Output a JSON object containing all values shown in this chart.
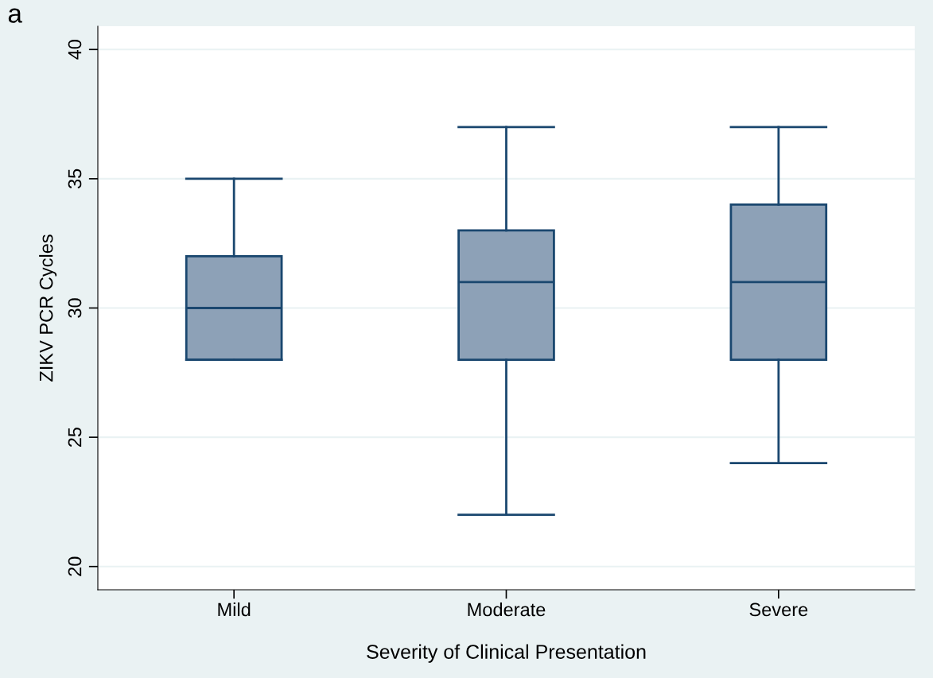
{
  "chart_data": {
    "type": "box",
    "xlabel": "Severity of Clinical Presentation",
    "ylabel": "ZIKV PCR Cycles",
    "annotations": [
      "a"
    ],
    "categories": [
      "Mild",
      "Moderate",
      "Severe"
    ],
    "boxes": [
      {
        "low": 28,
        "q1": 28,
        "median": 30,
        "q3": 32,
        "high": 35
      },
      {
        "low": 22,
        "q1": 28,
        "median": 31,
        "q3": 33,
        "high": 37
      },
      {
        "low": 24,
        "q1": 28,
        "median": 31,
        "q3": 34,
        "high": 37
      }
    ],
    "color": "#8da1b7",
    "ylim": [
      19.1,
      40.9
    ],
    "yticks": [
      20,
      25,
      30,
      35,
      40
    ],
    "grid": "y"
  }
}
